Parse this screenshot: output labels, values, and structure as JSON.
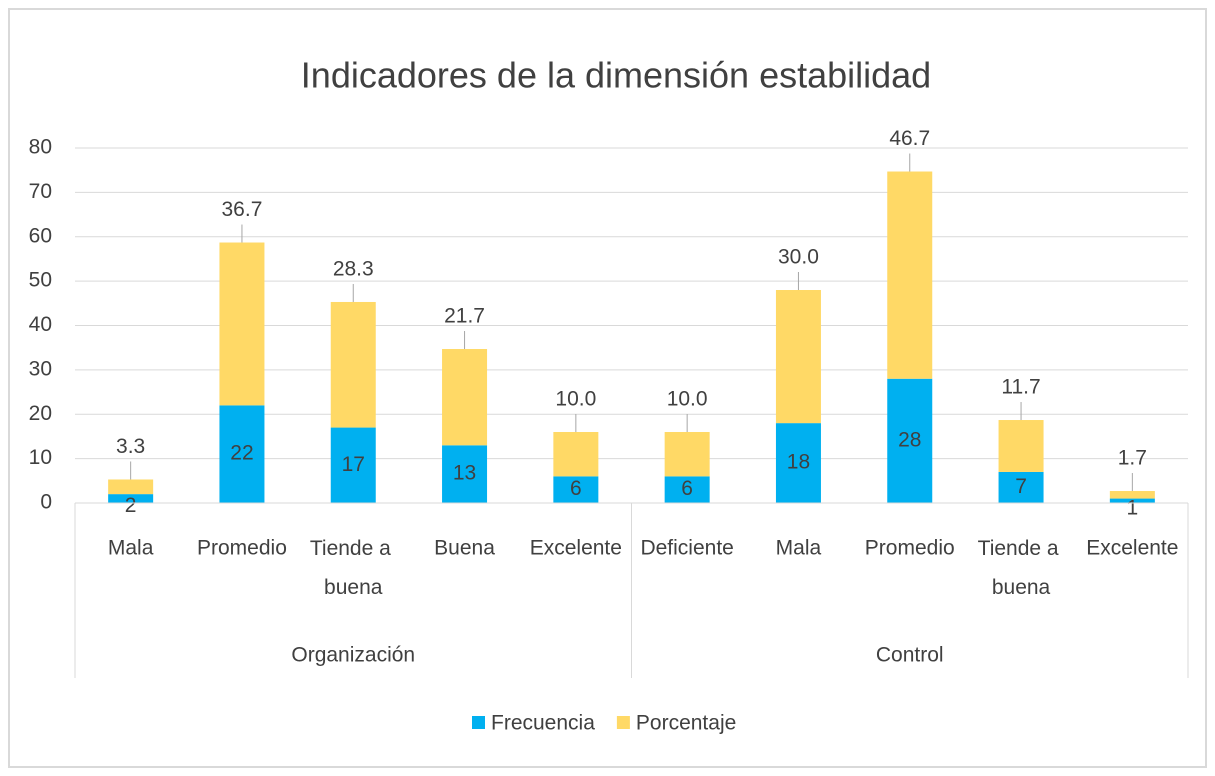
{
  "chart_data": {
    "type": "stacked_bar",
    "title": "Indicadores de la dimensión estabilidad",
    "groups": [
      {
        "name": "Organización",
        "categories": [
          "Mala",
          "Promedio",
          "Tiende a buena",
          "Buena",
          "Excelente"
        ]
      },
      {
        "name": "Control",
        "categories": [
          "Deficiente",
          "Mala",
          "Promedio",
          "Tiende a buena",
          "Excelente"
        ]
      }
    ],
    "series": [
      {
        "name": "Frecuencia",
        "color": "#00b0f0",
        "values": [
          2,
          22,
          17,
          13,
          6,
          6,
          18,
          28,
          7,
          1
        ]
      },
      {
        "name": "Porcentaje",
        "color": "#ffd966",
        "values": [
          3.3,
          36.7,
          28.3,
          21.7,
          10.0,
          10.0,
          30.0,
          46.7,
          11.7,
          1.7
        ],
        "value_labels": [
          "3.3",
          "36.7",
          "28.3",
          "21.7",
          "10.0",
          "10.0",
          "30.0",
          "46.7",
          "11.7",
          "1.7"
        ]
      }
    ],
    "ylim": [
      0,
      80
    ],
    "yticks": [
      0,
      10,
      20,
      30,
      40,
      50,
      60,
      70,
      80
    ],
    "grid": true,
    "legend": "bottom"
  }
}
